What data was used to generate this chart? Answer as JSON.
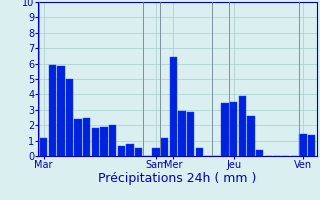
{
  "xlabel": "Précipitations 24h ( mm )",
  "ylim": [
    0,
    10
  ],
  "yticks": [
    0,
    1,
    2,
    3,
    4,
    5,
    6,
    7,
    8,
    9,
    10
  ],
  "background_color": "#daf0f0",
  "bar_color": "#0022dd",
  "bar_edge_color": "#1144ff",
  "grid_color": "#aacccc",
  "bar_values": [
    1.2,
    5.9,
    5.85,
    5.0,
    2.4,
    2.5,
    1.8,
    1.9,
    2.0,
    0.65,
    0.75,
    0.5,
    0.0,
    0.5,
    1.2,
    6.45,
    2.9,
    2.85,
    0.5,
    0.0,
    0.0,
    3.45,
    3.5,
    3.9,
    2.6,
    0.4,
    0.0,
    0.0,
    0.0,
    0.0,
    1.4,
    1.35
  ],
  "day_labels": [
    "Mar",
    "Sam",
    "Mer",
    "Jeu",
    "Ven"
  ],
  "day_tick_positions": [
    0,
    13,
    15,
    22,
    30
  ],
  "n_bars": 32,
  "bar_width": 0.85,
  "xlabel_fontsize": 9,
  "ytick_fontsize": 7,
  "xtick_fontsize": 7,
  "xlabel_color": "#0000bb",
  "tick_color": "#0000bb",
  "axis_color": "#0000bb",
  "vline_color": "#667788",
  "vline_lw": 0.7,
  "vline_positions": [
    -0.5,
    11.5,
    13.5,
    19.5,
    21.5,
    29.5
  ]
}
